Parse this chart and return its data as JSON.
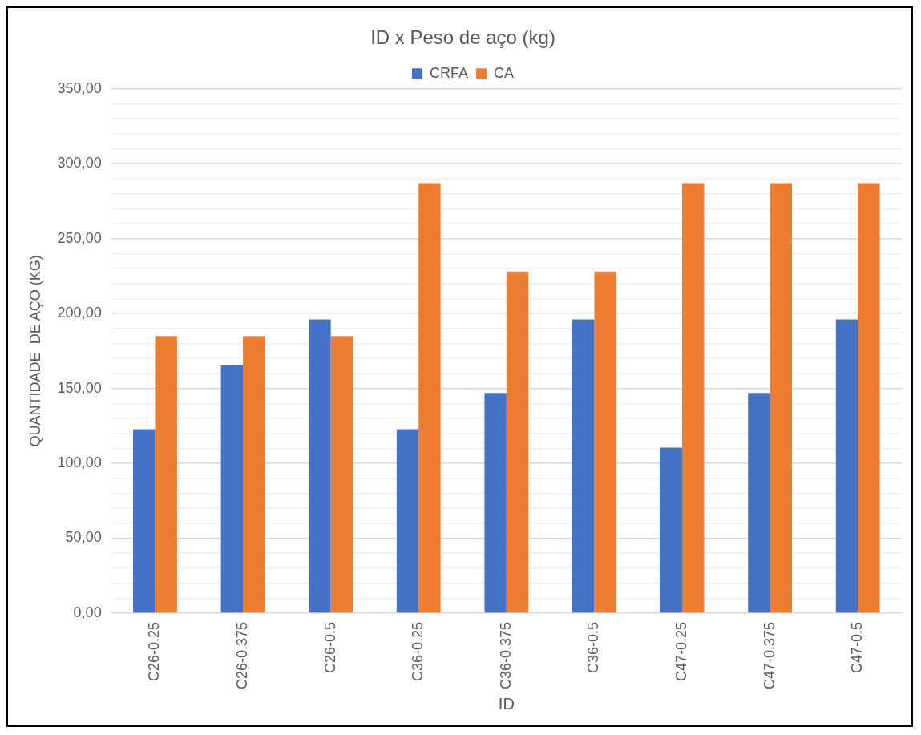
{
  "chart_data": {
    "type": "bar",
    "title": "ID x Peso de aço (kg)",
    "xlabel": "ID",
    "ylabel": "QUANTIDADE  DE AÇO (KG)",
    "categories": [
      "C26-0.25",
      "C26-0.375",
      "C26-0.5",
      "C36-0.25",
      "C36-0.375",
      "C36-0.5",
      "C47-0.25",
      "C47-0.375",
      "C47-0.5"
    ],
    "series": [
      {
        "name": "CRFA",
        "color": "#4472c4",
        "values": [
          122.7,
          165.3,
          196,
          122.7,
          147,
          196,
          110.4,
          147,
          196
        ]
      },
      {
        "name": "CA",
        "color": "#ed7d31",
        "values": [
          185,
          185,
          185,
          287,
          228,
          228,
          287,
          287,
          287
        ]
      }
    ],
    "ylim": [
      0,
      350
    ],
    "yticks": [
      {
        "value": 0,
        "label": "0,00"
      },
      {
        "value": 10,
        "label": null
      },
      {
        "value": 20,
        "label": null
      },
      {
        "value": 30,
        "label": null
      },
      {
        "value": 40,
        "label": null
      },
      {
        "value": 50,
        "label": "50,00"
      },
      {
        "value": 60,
        "label": null
      },
      {
        "value": 70,
        "label": null
      },
      {
        "value": 80,
        "label": null
      },
      {
        "value": 90,
        "label": null
      },
      {
        "value": 100,
        "label": "100,00"
      },
      {
        "value": 110,
        "label": null
      },
      {
        "value": 120,
        "label": null
      },
      {
        "value": 130,
        "label": null
      },
      {
        "value": 140,
        "label": null
      },
      {
        "value": 150,
        "label": "150,00"
      },
      {
        "value": 160,
        "label": null
      },
      {
        "value": 170,
        "label": null
      },
      {
        "value": 180,
        "label": null
      },
      {
        "value": 190,
        "label": null
      },
      {
        "value": 200,
        "label": "200,00"
      },
      {
        "value": 210,
        "label": null
      },
      {
        "value": 220,
        "label": null
      },
      {
        "value": 230,
        "label": null
      },
      {
        "value": 240,
        "label": null
      },
      {
        "value": 250,
        "label": "250,00"
      },
      {
        "value": 260,
        "label": null
      },
      {
        "value": 270,
        "label": null
      },
      {
        "value": 280,
        "label": null
      },
      {
        "value": 290,
        "label": null
      },
      {
        "value": 300,
        "label": "300,00"
      },
      {
        "value": 310,
        "label": null
      },
      {
        "value": 320,
        "label": null
      },
      {
        "value": 330,
        "label": null
      },
      {
        "value": 340,
        "label": null
      },
      {
        "value": 350,
        "label": "350,00"
      }
    ],
    "grid": true,
    "legend": "top"
  }
}
